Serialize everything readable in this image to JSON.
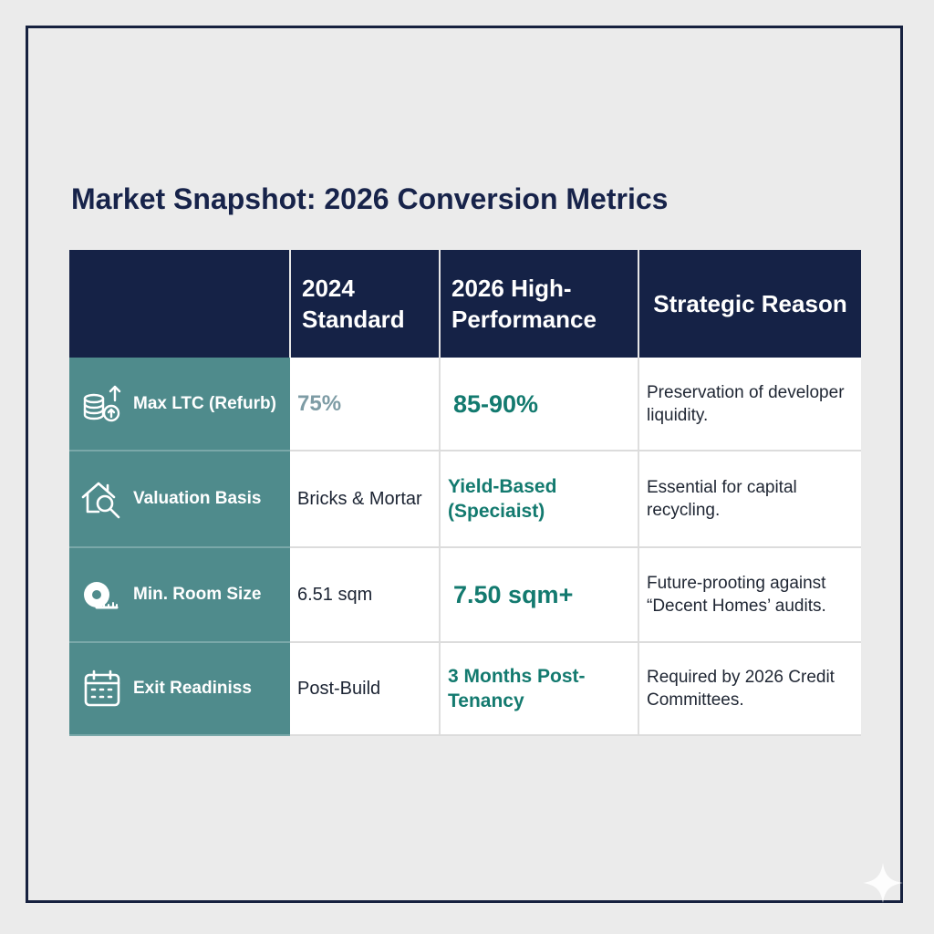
{
  "title": "Market Snapshot: 2026 Conversion Metrics",
  "table": {
    "headers": {
      "metric": "",
      "standard": "2024 Standard",
      "high_performance": "2026 High-Performance",
      "reason": "Strategic Reason"
    },
    "rows": [
      {
        "icon": "coins-up-arrow-icon",
        "metric": "Max LTC (Refurb)",
        "standard": "75%",
        "high_performance": "85-90%",
        "reason": "Preservation of developer liquidity."
      },
      {
        "icon": "house-magnifier-icon",
        "metric": "Valuation Basis",
        "standard": "Bricks & Mortar",
        "high_performance": "Yield-Based (Speciaist)",
        "reason": "Essential for capital recycling."
      },
      {
        "icon": "tape-measure-icon",
        "metric": "Min. Room Size",
        "standard": "6.51 sqm",
        "high_performance": "7.50 sqm+",
        "reason": "Future-prooting against “Decent Homes’ audits."
      },
      {
        "icon": "calendar-icon",
        "metric": "Exit Readiniss",
        "standard": "Post-Build",
        "high_performance": "3 Months Post-Tenancy",
        "reason": "Required by 2026 Credit Committees."
      }
    ]
  },
  "colors": {
    "header_bg": "#152246",
    "label_bg": "#4f8b8c",
    "accent_green": "#137a6f",
    "frame": "#16213f",
    "page_bg": "#ebebeb"
  }
}
